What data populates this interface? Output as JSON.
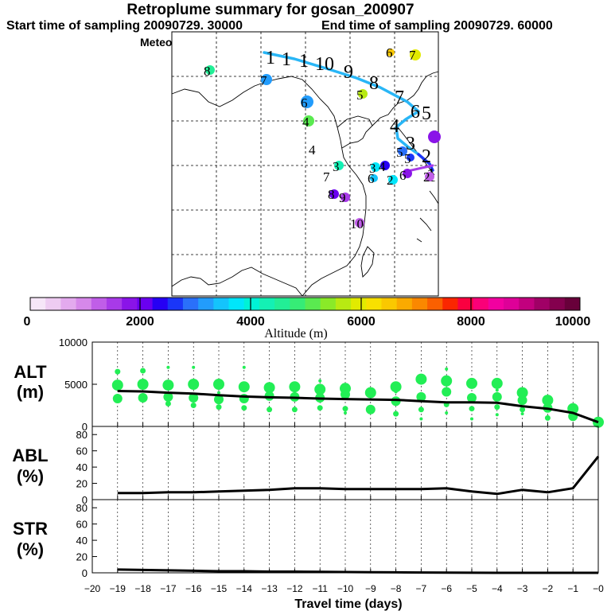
{
  "header": {
    "title": "Retroplume summary for gosan_200907",
    "start_label": "Start time of sampling 20090729. 30000",
    "end_label": "End time of sampling 20090729. 60000",
    "met_label": "Meteorological data used is ECMWF"
  },
  "colorbar": {
    "label": "Altitude (m)",
    "ticks": [
      "0",
      "2000",
      "4000",
      "6000",
      "8000",
      "10000"
    ],
    "colors": [
      "#f6e6f8",
      "#eeccf2",
      "#e3aaee",
      "#d688ea",
      "#c05ee8",
      "#a83ae8",
      "#8a14e8",
      "#6a00f0",
      "#2600f4",
      "#1a36f8",
      "#2a70fa",
      "#229cfc",
      "#14c4fc",
      "#00e6fa",
      "#00f2d6",
      "#14f0b4",
      "#22ee96",
      "#36ec76",
      "#5aea50",
      "#8aea28",
      "#b8ea12",
      "#e2ea00",
      "#f8e000",
      "#fac800",
      "#faaa00",
      "#fa8800",
      "#fa6000",
      "#fa2600",
      "#fa0040",
      "#fa0078",
      "#f200a0",
      "#de0098",
      "#c2007e",
      "#a00066",
      "#84004e",
      "#68003a"
    ]
  },
  "map": {
    "trajectory_labels": [
      "1",
      "1",
      "1",
      "10",
      "9",
      "8",
      "7",
      "6",
      "5",
      "4",
      "3",
      "2",
      "1"
    ],
    "cluster_labels": [
      "8",
      "7",
      "6",
      "5",
      "4",
      "4",
      "3",
      "3",
      "4",
      "6",
      "5",
      "5",
      "6",
      "2",
      "2",
      "7",
      "8",
      "9",
      "10",
      "7",
      "6"
    ]
  },
  "chart_data": [
    {
      "type": "line",
      "name": "ALT",
      "title": "ALT (m)",
      "ylabel_line1": "ALT",
      "ylabel_line2": "(m)",
      "ylim": [
        0,
        10000
      ],
      "yticks": [
        "10000",
        "5000",
        "0"
      ],
      "ytick_values": [
        10000,
        5000,
        0
      ],
      "x": [
        -19,
        -18,
        -17,
        -16,
        -15,
        -14,
        -13,
        -12,
        -11,
        -10,
        -9,
        -8,
        -7,
        -6,
        -5,
        -4,
        -3,
        -2,
        -1,
        0
      ],
      "values": [
        4200,
        4150,
        4000,
        3900,
        3700,
        3550,
        3450,
        3400,
        3300,
        3250,
        3200,
        3150,
        3000,
        2850,
        2850,
        2800,
        2400,
        2100,
        1600,
        500
      ],
      "scatter": [
        {
          "x": -19,
          "y": [
            4900,
            3300,
            6500
          ]
        },
        {
          "x": -18,
          "y": [
            5000,
            3400,
            6600
          ]
        },
        {
          "x": -17,
          "y": [
            4900,
            3500,
            2700,
            7000
          ]
        },
        {
          "x": -16,
          "y": [
            5000,
            3400,
            2500,
            7000
          ]
        },
        {
          "x": -15,
          "y": [
            5000,
            3200,
            2300,
            4000
          ]
        },
        {
          "x": -14,
          "y": [
            4700,
            3300,
            2200,
            7000
          ]
        },
        {
          "x": -13,
          "y": [
            4600,
            3600,
            2000
          ]
        },
        {
          "x": -12,
          "y": [
            4700,
            3500,
            2000
          ]
        },
        {
          "x": -11,
          "y": [
            4400,
            3400,
            2200,
            5400
          ]
        },
        {
          "x": -10,
          "y": [
            4500,
            3800,
            2100,
            1600
          ]
        },
        {
          "x": -9,
          "y": [
            4000,
            2000,
            4100
          ]
        },
        {
          "x": -8,
          "y": [
            4700,
            3000,
            1500,
            4100
          ]
        },
        {
          "x": -7,
          "y": [
            5600,
            3500,
            2000,
            900
          ]
        },
        {
          "x": -6,
          "y": [
            5400,
            4100,
            2600,
            1600,
            6800
          ]
        },
        {
          "x": -5,
          "y": [
            5100,
            3400,
            2100,
            900
          ]
        },
        {
          "x": -4,
          "y": [
            5100,
            3500,
            2300,
            1400,
            4300
          ]
        },
        {
          "x": -3,
          "y": [
            4000,
            3100,
            2000,
            1500
          ]
        },
        {
          "x": -2,
          "y": [
            3100,
            2200,
            1000
          ]
        },
        {
          "x": -1,
          "y": [
            2100,
            1200
          ]
        },
        {
          "x": 0,
          "y": [
            500
          ]
        }
      ],
      "dot_color": "#22ee55"
    },
    {
      "type": "line",
      "name": "ABL",
      "title": "ABL (%)",
      "ylabel_line1": "ABL",
      "ylabel_line2": "(%)",
      "ylim": [
        0,
        90
      ],
      "yticks": [
        "80",
        "60",
        "40",
        "20",
        "0"
      ],
      "ytick_values": [
        80,
        60,
        40,
        20,
        0
      ],
      "x": [
        -19,
        -18,
        -17,
        -16,
        -15,
        -14,
        -13,
        -12,
        -11,
        -10,
        -9,
        -8,
        -7,
        -6,
        -5,
        -4,
        -3,
        -2,
        -1,
        0
      ],
      "values": [
        8,
        8,
        9,
        9,
        10,
        11,
        12,
        14,
        14,
        13,
        13,
        13,
        13,
        14,
        10,
        7,
        12,
        9,
        14,
        53
      ]
    },
    {
      "type": "line",
      "name": "STR",
      "title": "STR (%)",
      "ylabel_line1": "STR",
      "ylabel_line2": "(%)",
      "ylim": [
        0,
        90
      ],
      "yticks": [
        "80",
        "60",
        "40",
        "20",
        "0"
      ],
      "ytick_values": [
        80,
        60,
        40,
        20,
        0
      ],
      "x": [
        -19,
        -18,
        -17,
        -16,
        -15,
        -14,
        -13,
        -12,
        -11,
        -10,
        -9,
        -8,
        -7,
        -6,
        -5,
        -4,
        -3,
        -2,
        -1,
        0
      ],
      "values": [
        4,
        3.5,
        3,
        2.5,
        2,
        2,
        1.5,
        1.5,
        1.2,
        1,
        0.8,
        0.6,
        0.4,
        0.2,
        0.1,
        0,
        0,
        0,
        0,
        0
      ]
    }
  ],
  "xaxis": {
    "label": "Travel time (days)",
    "xlim": [
      -20,
      0
    ],
    "ticks": [
      "−20",
      "−19",
      "−18",
      "−17",
      "−16",
      "−15",
      "−14",
      "−13",
      "−12",
      "−11",
      "−10",
      "−9",
      "−8",
      "−7",
      "−6",
      "−5",
      "−4",
      "−3",
      "−2",
      "−1",
      "−0"
    ]
  }
}
